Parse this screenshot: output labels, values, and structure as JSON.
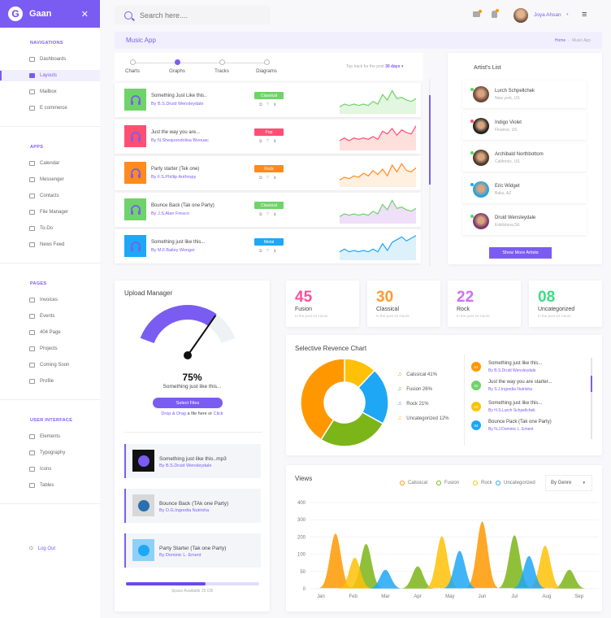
{
  "brand": {
    "name": "Gaan",
    "logo_letter": "G",
    "accent": "#7b5cf2"
  },
  "sidebar": {
    "sections": [
      {
        "title": "NAVIGATIONS",
        "items": [
          {
            "label": "Dashboards"
          },
          {
            "label": "Layouts",
            "active": true
          },
          {
            "label": "Mailbox"
          },
          {
            "label": "E commerce"
          }
        ]
      },
      {
        "title": "APPS",
        "items": [
          {
            "label": "Calendar"
          },
          {
            "label": "Messenger"
          },
          {
            "label": "Contacts"
          },
          {
            "label": "File Manager"
          },
          {
            "label": "To-Do"
          },
          {
            "label": "News Feed"
          }
        ]
      },
      {
        "title": "PAGES",
        "items": [
          {
            "label": "Invoices"
          },
          {
            "label": "Events"
          },
          {
            "label": "404 Page"
          },
          {
            "label": "Projects"
          },
          {
            "label": "Coming Soon"
          },
          {
            "label": "Profile"
          }
        ]
      },
      {
        "title": "USER INTERFACE",
        "items": [
          {
            "label": "Elements"
          },
          {
            "label": "Typography"
          },
          {
            "label": "Icons"
          },
          {
            "label": "Tables"
          }
        ]
      }
    ],
    "logout": "Log Out"
  },
  "header": {
    "search_placeholder": "Search here....",
    "user_name": "Joya Ahsan"
  },
  "page": {
    "title": "Music App",
    "breadcrumb": [
      "Home",
      "Music App"
    ]
  },
  "tracks": {
    "tabs": [
      {
        "label": "Charts"
      },
      {
        "label": "Graphs",
        "active": true
      },
      {
        "label": "Tracks"
      },
      {
        "label": "Diagrams"
      }
    ],
    "filter_prefix": "Top track for the post",
    "filter_value": "30 days",
    "rows": [
      {
        "title": "Something Just Like this..",
        "artist": "By B.S.Druid Wensleydale",
        "genre": "Classical",
        "color": "#6fd36a",
        "fill": "#e3f6df",
        "spark": [
          4,
          6,
          5,
          6,
          5,
          6,
          5,
          8,
          6,
          13,
          9,
          16,
          10,
          11,
          9,
          8,
          10
        ]
      },
      {
        "title": "Just the way you are...",
        "artist": "By N.Shequondolisa Bivouac",
        "genre": "Pop",
        "color": "#ff4f73",
        "fill": "#fde0dc",
        "spark": [
          6,
          8,
          6,
          8,
          7,
          8,
          7,
          9,
          7,
          13,
          11,
          15,
          10,
          14,
          12,
          11,
          17
        ]
      },
      {
        "title": "Party starter (Tek one)",
        "artist": "By F.S.Phillip Anthropy",
        "genre": "Rock",
        "color": "#ff8a1f",
        "fill": "#fff0e0",
        "spark": [
          4,
          6,
          5,
          7,
          6,
          9,
          7,
          11,
          8,
          12,
          7,
          15,
          10,
          16,
          11,
          10,
          13
        ]
      },
      {
        "title": "Bounce Back (Tak one Party)",
        "artist": "By J.S.Alan Fresco",
        "genre": "Classical",
        "color": "#6fd36a",
        "fill": "#efdff9",
        "spark": [
          4,
          6,
          5,
          6,
          5,
          6,
          5,
          8,
          6,
          13,
          9,
          16,
          10,
          11,
          9,
          8,
          10
        ]
      },
      {
        "title": "Something just like this...",
        "artist": "By M.F.Bailey Wonger",
        "genre": "Metal",
        "color": "#1ea7f5",
        "fill": "#ddf1fb",
        "spark": [
          5,
          7,
          5,
          6,
          5,
          6,
          5,
          7,
          5,
          11,
          6,
          12,
          14,
          16,
          13,
          15,
          17
        ]
      }
    ]
  },
  "artists": {
    "title": "Artist's List",
    "button": "Show More Artists",
    "items": [
      {
        "name": "Lurch Schpellchek",
        "location": "New york, US",
        "status": "#4cd964",
        "avatar": "#6b4a3a"
      },
      {
        "name": "Indigo Violet",
        "location": "Finance, US",
        "status": "#ff4f73",
        "avatar": "#222222"
      },
      {
        "name": "Archibald Northbottom",
        "location": "Californic, US",
        "status": "#4cd964",
        "avatar": "#4a3a2a"
      },
      {
        "name": "Eric Widget",
        "location": "Baku, AZ",
        "status": "#1ea7f5",
        "avatar": "#2aa1d8"
      },
      {
        "name": "Druid Wensleydale",
        "location": "Eskilstuna,SE",
        "status": "#4cd964",
        "avatar": "#7a3a6a"
      }
    ]
  },
  "upload": {
    "title": "Upload Manager",
    "percent": 75,
    "percent_label": "75%",
    "current_file": "Something just like this...",
    "button": "Select Files",
    "drop_a": "Drop & Drag",
    "drop_b": " a file here or ",
    "drop_c": "Click",
    "files": [
      {
        "title": "Something just like this..mp3",
        "artist": "By B.S.Druid Wensleydale",
        "bg": "#111111",
        "icon": "#7b5cf2"
      },
      {
        "title": "Bounce Back (TAk one Party)",
        "artist": "By D.G.Ingredia Nutrisha",
        "bg": "#d8d8d8",
        "icon": "#2a6fb0"
      },
      {
        "title": "Party Starter (Tak one Party)",
        "artist": "By Dominic L. Ement",
        "bg": "#8fd0f7",
        "icon": "#1ea7f5"
      }
    ],
    "space_fraction": 0.6,
    "space_label": "Space Available 25 GB"
  },
  "stats": [
    {
      "value": "45",
      "label": "Fusion",
      "sub": "In the post 24 Hours",
      "color": "#ff4f9a"
    },
    {
      "value": "30",
      "label": "Classical",
      "sub": "In the post 24 Hours",
      "color": "#ff9a2f"
    },
    {
      "value": "22",
      "label": "Rock",
      "sub": "In the post 24 Hours",
      "color": "#d070f5"
    },
    {
      "value": "08",
      "label": "Uncategorized",
      "sub": "In the post 24 Hours",
      "color": "#3ddc84"
    }
  ],
  "revenue": {
    "title": "Selective Revence Chart",
    "list": [
      {
        "num": "01",
        "title": "Something just like this...",
        "artist": "By B.S.Druid Wensleydale",
        "color": "#ff9800"
      },
      {
        "num": "02",
        "title": "Just the way you are starter...",
        "artist": "By S.J.Ingredia Nutrisha",
        "color": "#6fd36a"
      },
      {
        "num": "03",
        "title": "Something just like this...",
        "artist": "By H.S.Lurch Schpellchek",
        "color": "#ffc107"
      },
      {
        "num": "04",
        "title": "Bounce Pack (Tak one Party)",
        "artist": "By N.J.Dominic L. Ement",
        "color": "#1ea7f5"
      }
    ]
  },
  "views": {
    "title": "Views",
    "dropdown": "By Genre"
  },
  "chart_data": [
    {
      "type": "pie",
      "donut": true,
      "title": "Selective Revence Chart",
      "slices": [
        {
          "label": "Calssical 41%",
          "value": 41,
          "color": "#ff9800"
        },
        {
          "label": "Fusion 26%",
          "value": 26,
          "color": "#7cb518"
        },
        {
          "label": "Rock 21%",
          "value": 21,
          "color": "#1ea7f5"
        },
        {
          "label": "Uncategorized 12%",
          "value": 12,
          "color": "#ffc107"
        }
      ],
      "draw_order": [
        "Uncategorized 12%",
        "Rock 21%",
        "Fusion 26%",
        "Calssical 41%"
      ],
      "legend": "right"
    },
    {
      "type": "area",
      "title": "Views",
      "categories": [
        "Jan",
        "Feb",
        "Mar",
        "Apr",
        "May",
        "Jun",
        "Jul",
        "Aug",
        "Sep"
      ],
      "y_ticks": [
        0,
        50,
        100,
        200,
        300,
        400
      ],
      "ylim": [
        0,
        400
      ],
      "grid": true,
      "legend": "top-right",
      "series": [
        {
          "name": "Calssical",
          "color": "#ff9800",
          "peaks": [
            {
              "month": 0.45,
              "value": 220
            },
            {
              "month": 5.0,
              "value": 290
            }
          ]
        },
        {
          "name": "Fusion",
          "color": "#7cb518",
          "peaks": [
            {
              "month": 1.4,
              "value": 160
            },
            {
              "month": 3.0,
              "value": 65
            },
            {
              "month": 6.0,
              "value": 210
            },
            {
              "month": 7.7,
              "value": 55
            }
          ]
        },
        {
          "name": "Rock",
          "color": "#ffc107",
          "peaks": [
            {
              "month": 1.05,
              "value": 90
            },
            {
              "month": 3.75,
              "value": 205
            },
            {
              "month": 6.95,
              "value": 150
            }
          ]
        },
        {
          "name": "Uncategorized",
          "color": "#1ea7f5",
          "peaks": [
            {
              "month": 2.0,
              "value": 55
            },
            {
              "month": 4.3,
              "value": 120
            },
            {
              "month": 6.45,
              "value": 95
            }
          ]
        }
      ]
    }
  ]
}
